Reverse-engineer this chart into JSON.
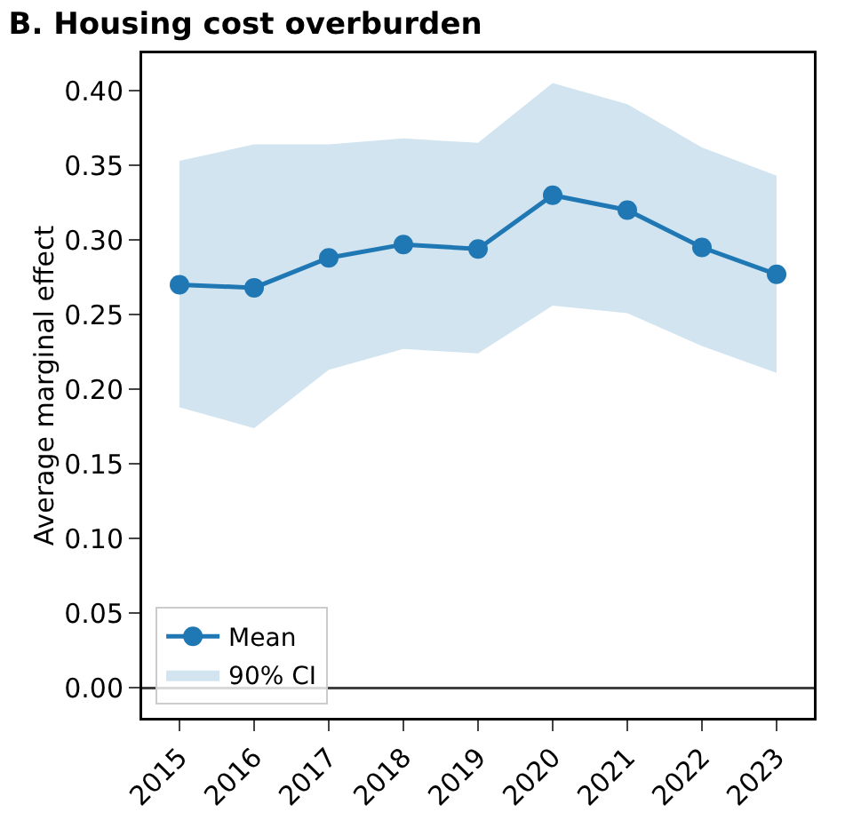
{
  "chart_data": {
    "type": "line",
    "title": "B. Housing cost overburden",
    "ylabel": "Average marginal effect",
    "categories": [
      "2015",
      "2016",
      "2017",
      "2018",
      "2019",
      "2020",
      "2021",
      "2022",
      "2023"
    ],
    "series": [
      {
        "name": "Mean",
        "color": "#1f77b4",
        "values": [
          0.27,
          0.268,
          0.288,
          0.297,
          0.294,
          0.33,
          0.32,
          0.295,
          0.277
        ],
        "lower": [
          0.188,
          0.174,
          0.213,
          0.227,
          0.224,
          0.256,
          0.251,
          0.229,
          0.211
        ],
        "upper": [
          0.353,
          0.364,
          0.364,
          0.368,
          0.365,
          0.405,
          0.391,
          0.362,
          0.343
        ]
      }
    ],
    "annotations": [
      "90% CI"
    ],
    "ylim": [
      -0.02,
      0.425
    ],
    "yticks": [
      {
        "value": 0,
        "label": "0.00"
      },
      {
        "value": 0.05,
        "label": "0.05"
      },
      {
        "value": 0.1,
        "label": "0.10"
      },
      {
        "value": 0.15,
        "label": "0.15"
      },
      {
        "value": 0.2,
        "label": "0.20"
      },
      {
        "value": 0.25,
        "label": "0.25"
      },
      {
        "value": 0.3,
        "label": "0.30"
      },
      {
        "value": 0.35,
        "label": "0.35"
      },
      {
        "value": 0.4,
        "label": "0.40"
      }
    ],
    "ref_lines": [
      {
        "axis": "y",
        "value": 0,
        "color": "#404040"
      }
    ],
    "grid": false,
    "legend": "bottom left",
    "marker": "circle",
    "line_style": "solid"
  }
}
